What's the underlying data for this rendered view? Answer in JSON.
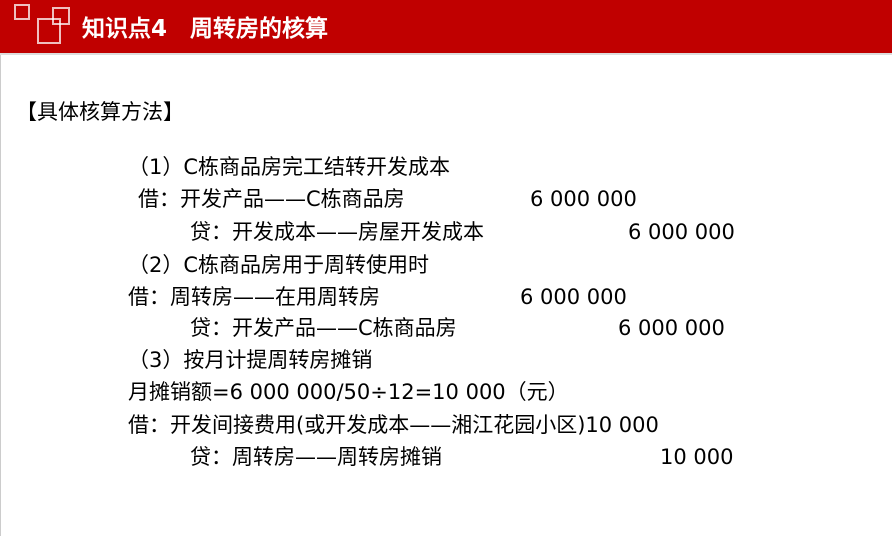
{
  "header": {
    "title": "知识点4　周转房的核算",
    "color": "#c00000"
  },
  "section": "【具体核算方法】",
  "lines": [
    {
      "text": "（1）C栋商品房完工结转开发成本"
    },
    {
      "text": "借：开发产品——C栋商品房",
      "amount": "6 000 000"
    },
    {
      "text": "贷：开发成本——房屋开发成本",
      "amount": "6 000 000"
    },
    {
      "text": "（2）C栋商品房用于周转使用时"
    },
    {
      "text": "借：周转房——在用周转房",
      "amount": "6 000 000"
    },
    {
      "text": "贷：开发产品——C栋商品房",
      "amount": "6 000 000"
    },
    {
      "text": "（3）按月计提周转房摊销"
    },
    {
      "text": "月摊销额=6 000 000/50÷12=10 000（元）"
    },
    {
      "text": "借：开发间接费用(或开发成本——湘江花园小区)10 000"
    },
    {
      "text": "贷：周转房——周转房摊销",
      "amount": "10 000"
    }
  ]
}
